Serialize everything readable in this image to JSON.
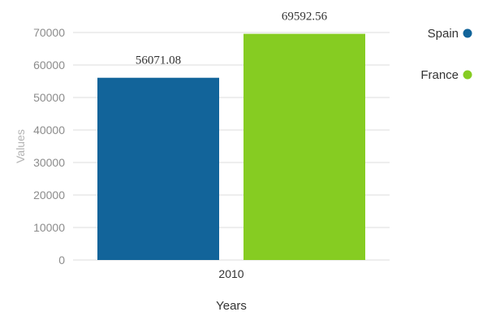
{
  "chart_data": {
    "type": "bar",
    "categories": [
      "2010"
    ],
    "series": [
      {
        "name": "Spain",
        "values": [
          56071.08
        ],
        "color": "#12649a"
      },
      {
        "name": "France",
        "values": [
          69592.56
        ],
        "color": "#86cc22"
      }
    ],
    "xlabel": "Years",
    "ylabel": "Values",
    "ylim": [
      0,
      70000
    ],
    "yticks": [
      "0",
      "10000",
      "20000",
      "30000",
      "40000",
      "50000",
      "60000",
      "70000"
    ],
    "data_labels": [
      "56071.08",
      "69592.56"
    ],
    "grid": true,
    "legend_position": "right"
  }
}
